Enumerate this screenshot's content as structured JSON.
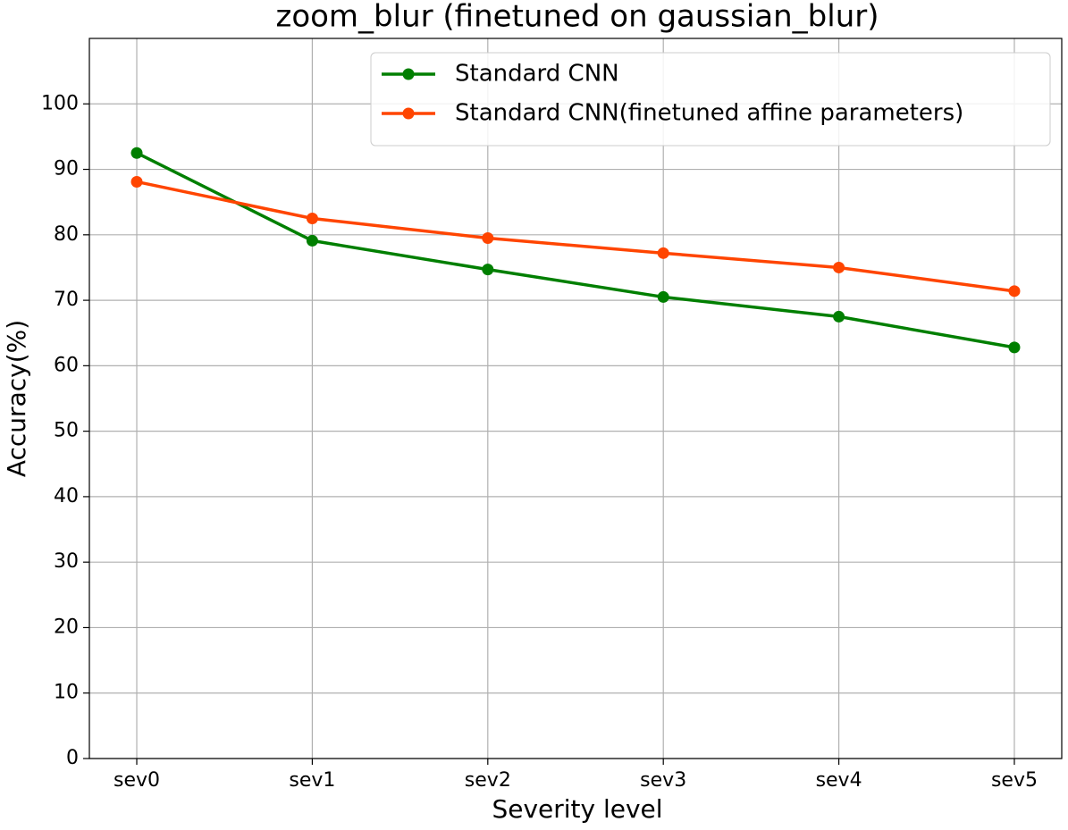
{
  "chart_data": {
    "type": "line",
    "title": "zoom_blur (finetuned on gaussian_blur)",
    "x_label": "Severity level",
    "y_label": "Accuracy(%)",
    "categories": [
      "sev0",
      "sev1",
      "sev2",
      "sev3",
      "sev4",
      "sev5"
    ],
    "series": [
      {
        "name": "Standard CNN",
        "color": "#007f00",
        "values": [
          92.5,
          79.1,
          74.7,
          70.5,
          67.5,
          62.8
        ]
      },
      {
        "name": "Standard CNN(finetuned affine parameters)",
        "color": "#ff4500",
        "values": [
          88.1,
          82.5,
          79.5,
          77.2,
          75.0,
          71.4
        ]
      }
    ],
    "ylim": [
      0,
      110
    ],
    "yticks": [
      0,
      10,
      20,
      30,
      40,
      50,
      60,
      70,
      80,
      90,
      100
    ],
    "grid": true,
    "legend": "upper right"
  }
}
